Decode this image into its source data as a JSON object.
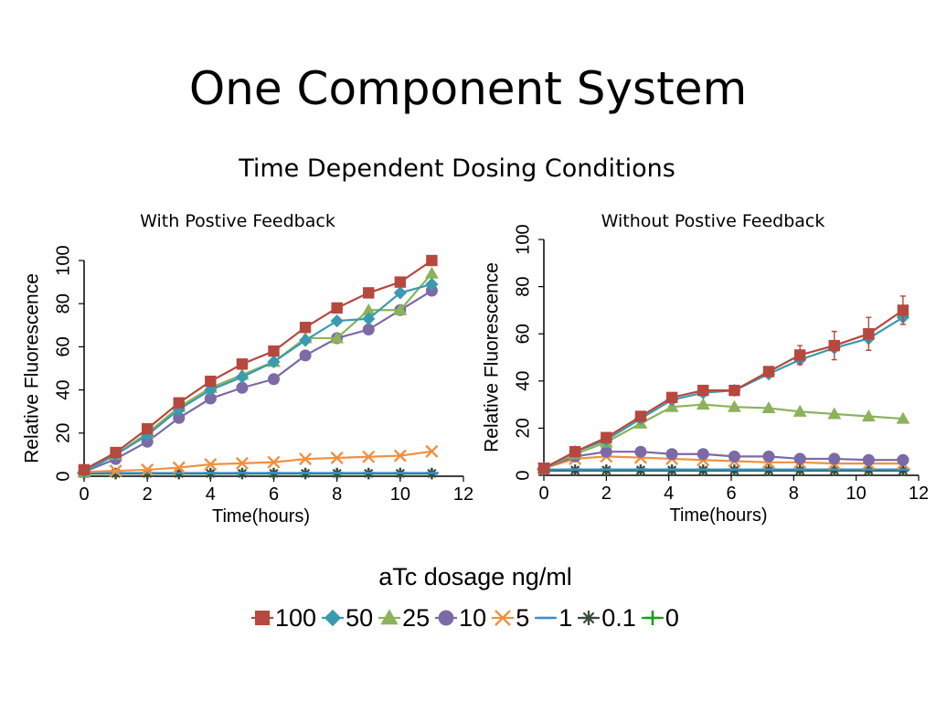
{
  "slide": {
    "title": "One Component System",
    "subtitle": "Time Dependent Dosing Conditions"
  },
  "legend": {
    "title": "aTc dosage ng/ml",
    "items": [
      {
        "label": "100",
        "marker": "square",
        "color": "#b5483f"
      },
      {
        "label": "50",
        "marker": "diamond",
        "color": "#3a9ab1"
      },
      {
        "label": "25",
        "marker": "triangle",
        "color": "#8cb35a"
      },
      {
        "label": "10",
        "marker": "circle",
        "color": "#7b6aa6"
      },
      {
        "label": "5",
        "marker": "x",
        "color": "#f09040"
      },
      {
        "label": "1",
        "marker": "dash",
        "color": "#3b8fcf"
      },
      {
        "label": "0.1",
        "marker": "star",
        "color": "#3a4a3a"
      },
      {
        "label": "0",
        "marker": "plus",
        "color": "#1aa01a"
      }
    ]
  },
  "chart_data": [
    {
      "type": "line",
      "title": "With Postive Feedback",
      "xlabel": "Time(hours)",
      "ylabel": "Relative Fluorescence",
      "xlim": [
        0,
        12
      ],
      "ylim": [
        0,
        100
      ],
      "xticks": [
        0,
        2,
        4,
        6,
        8,
        10,
        12
      ],
      "yticks": [
        0,
        20,
        40,
        60,
        80,
        100
      ],
      "x": [
        0,
        1,
        2,
        3,
        4,
        5,
        6,
        7,
        8,
        9,
        10,
        11
      ],
      "series": [
        {
          "name": "100",
          "color": "#b5483f",
          "marker": "square",
          "values": [
            3,
            11,
            22,
            34,
            44,
            52,
            58,
            69,
            78,
            85,
            90,
            100
          ]
        },
        {
          "name": "50",
          "color": "#3a9ab1",
          "marker": "diamond",
          "values": [
            2,
            10,
            19,
            31,
            40,
            46,
            53,
            63,
            72,
            73,
            85,
            89
          ]
        },
        {
          "name": "25",
          "color": "#8cb35a",
          "marker": "triangle",
          "values": [
            2,
            10,
            20,
            32,
            41,
            47,
            53,
            64,
            64,
            77,
            77,
            94
          ]
        },
        {
          "name": "10",
          "color": "#7b6aa6",
          "marker": "circle",
          "values": [
            2,
            8,
            16,
            27,
            36,
            41,
            45,
            56,
            64,
            68,
            77,
            86
          ]
        },
        {
          "name": "5",
          "color": "#f09040",
          "marker": "x",
          "values": [
            2,
            2.5,
            3,
            4,
            5.5,
            6,
            6.5,
            8,
            8.5,
            9,
            9.5,
            11.5
          ]
        },
        {
          "name": "1",
          "color": "#3b8fcf",
          "marker": "dash",
          "values": [
            1.5,
            1.5,
            1.5,
            1.5,
            1.5,
            1.5,
            1.5,
            1.5,
            1.5,
            1.5,
            1.5,
            1.5
          ]
        },
        {
          "name": "0.1",
          "color": "#3a4a3a",
          "marker": "star",
          "values": [
            1.3,
            1.3,
            1.3,
            1.3,
            1.3,
            1.3,
            1.3,
            1.3,
            1.3,
            1.3,
            1.3,
            1.3
          ]
        },
        {
          "name": "0",
          "color": "#1aa01a",
          "marker": "plus",
          "values": [
            1.2,
            1.2,
            1.2,
            1.2,
            1.2,
            1.2,
            1.2,
            1.2,
            1.2,
            1.2,
            1.2,
            1.2
          ]
        }
      ]
    },
    {
      "type": "line",
      "title": "Without Postive Feedback",
      "xlabel": "Time(hours)",
      "ylabel": "Relative Fluorescence",
      "xlim": [
        0,
        12
      ],
      "ylim": [
        0,
        100
      ],
      "xticks": [
        0,
        2,
        4,
        6,
        8,
        10,
        12
      ],
      "yticks": [
        0,
        20,
        40,
        60,
        80,
        100
      ],
      "x": [
        0,
        1,
        2,
        3.1,
        4.1,
        5.1,
        6.1,
        7.2,
        8.2,
        9.3,
        10.4,
        11.5
      ],
      "series": [
        {
          "name": "100",
          "color": "#b5483f",
          "marker": "square",
          "values": [
            3,
            10,
            16,
            25,
            33,
            36,
            36,
            44,
            51,
            55,
            60,
            70
          ],
          "errors": [
            0,
            0,
            0,
            0,
            0,
            0,
            0,
            0,
            4,
            6,
            7,
            6
          ]
        },
        {
          "name": "50",
          "color": "#3a9ab1",
          "marker": "diamond",
          "values": [
            3,
            10,
            15,
            24,
            32,
            35,
            36,
            43,
            49,
            54,
            58,
            67
          ]
        },
        {
          "name": "25",
          "color": "#8cb35a",
          "marker": "triangle",
          "values": [
            3,
            9,
            14,
            22,
            29,
            30,
            29,
            28.5,
            27,
            26,
            25,
            24
          ]
        },
        {
          "name": "10",
          "color": "#7b6aa6",
          "marker": "circle",
          "values": [
            3,
            8,
            10,
            10,
            9,
            9,
            8,
            8,
            7,
            7,
            6.5,
            6.5
          ]
        },
        {
          "name": "5",
          "color": "#f09040",
          "marker": "x",
          "values": [
            3,
            7,
            8,
            7.5,
            7,
            6.5,
            6,
            5.5,
            5.5,
            5,
            5,
            5
          ]
        },
        {
          "name": "1",
          "color": "#3b8fcf",
          "marker": "dash",
          "values": [
            2.5,
            2.5,
            2.5,
            2.5,
            2.5,
            2.5,
            2.5,
            2.5,
            2.5,
            2.5,
            2.5,
            2.5
          ]
        },
        {
          "name": "0.1",
          "color": "#3a4a3a",
          "marker": "star",
          "values": [
            2.2,
            2.2,
            2.2,
            2.2,
            2.2,
            2.2,
            2.2,
            2.2,
            2.2,
            2.2,
            2.2,
            2.2
          ]
        },
        {
          "name": "0",
          "color": "#1aa01a",
          "marker": "plus",
          "values": [
            2,
            2,
            2,
            2,
            2,
            2,
            2,
            2,
            2,
            2,
            2,
            2
          ]
        }
      ]
    }
  ]
}
